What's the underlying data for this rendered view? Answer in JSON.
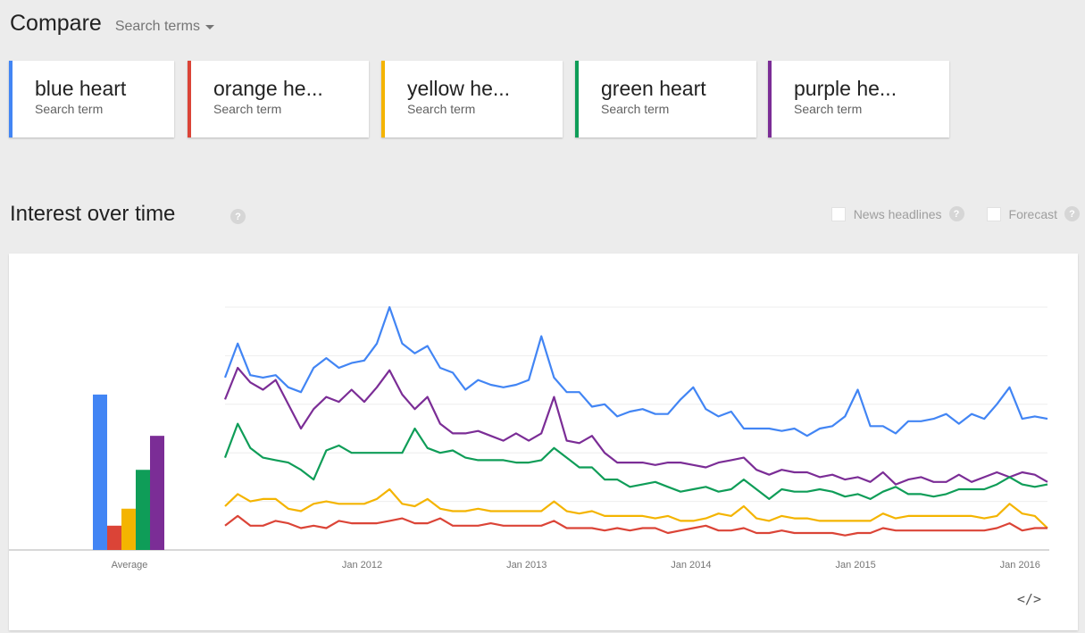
{
  "header": {
    "title": "Compare",
    "dropdown_label": "Search terms"
  },
  "terms": [
    {
      "name": "blue heart",
      "type": "Search term",
      "color": "#4285f4"
    },
    {
      "name": "orange he...",
      "type": "Search term",
      "color": "#db4437"
    },
    {
      "name": "yellow he...",
      "type": "Search term",
      "color": "#f4b400"
    },
    {
      "name": "green heart",
      "type": "Search term",
      "color": "#0f9d58"
    },
    {
      "name": "purple he...",
      "type": "Search term",
      "color": "#7b2d96"
    }
  ],
  "section": {
    "title": "Interest over time",
    "help": "?"
  },
  "options": [
    {
      "label": "News headlines",
      "help": "?"
    },
    {
      "label": "Forecast",
      "help": "?"
    }
  ],
  "chart_data": {
    "type": "line",
    "average_label": "Average",
    "x_ticks": [
      "Jan 2012",
      "Jan 2013",
      "Jan 2014",
      "Jan 2015",
      "Jan 2016"
    ],
    "x_start": "2011-03",
    "x_end": "2016-03",
    "ylim": [
      0,
      100
    ],
    "grid": true,
    "averages": [
      64,
      10,
      17,
      33,
      47
    ],
    "series": [
      {
        "name": "blue heart",
        "color": "#4285f4",
        "values": [
          71,
          85,
          72,
          71,
          72,
          67,
          65,
          75,
          79,
          75,
          77,
          78,
          85,
          100,
          85,
          81,
          84,
          75,
          73,
          66,
          70,
          68,
          67,
          68,
          70,
          88,
          71,
          65,
          65,
          59,
          60,
          55,
          57,
          58,
          56,
          56,
          62,
          67,
          58,
          55,
          57,
          50,
          50,
          50,
          49,
          50,
          47,
          50,
          51,
          55,
          66,
          51,
          51,
          48,
          53,
          53,
          54,
          56,
          52,
          56,
          54,
          60,
          67,
          54,
          55,
          54
        ]
      },
      {
        "name": "purple heart",
        "color": "#7b2d96",
        "values": [
          62,
          75,
          69,
          66,
          70,
          60,
          50,
          58,
          63,
          61,
          66,
          61,
          67,
          74,
          64,
          58,
          63,
          52,
          48,
          48,
          49,
          47,
          45,
          48,
          45,
          48,
          63,
          45,
          44,
          47,
          40,
          36,
          36,
          36,
          35,
          36,
          36,
          35,
          34,
          36,
          37,
          38,
          33,
          31,
          33,
          32,
          32,
          30,
          31,
          29,
          30,
          28,
          32,
          27,
          29,
          30,
          28,
          28,
          31,
          28,
          30,
          32,
          30,
          32,
          31,
          28
        ]
      },
      {
        "name": "green heart",
        "color": "#0f9d58",
        "values": [
          38,
          52,
          42,
          38,
          37,
          36,
          33,
          29,
          41,
          43,
          40,
          40,
          40,
          40,
          40,
          50,
          42,
          40,
          41,
          38,
          37,
          37,
          37,
          36,
          36,
          37,
          42,
          38,
          34,
          34,
          29,
          29,
          26,
          27,
          28,
          26,
          24,
          25,
          26,
          24,
          25,
          29,
          25,
          21,
          25,
          24,
          24,
          25,
          24,
          22,
          23,
          21,
          24,
          26,
          23,
          23,
          22,
          23,
          25,
          25,
          25,
          27,
          30,
          27,
          26,
          27
        ]
      },
      {
        "name": "yellow heart",
        "color": "#f4b400",
        "values": [
          18,
          23,
          20,
          21,
          21,
          17,
          16,
          19,
          20,
          19,
          19,
          19,
          21,
          25,
          19,
          18,
          21,
          17,
          16,
          16,
          17,
          16,
          16,
          16,
          16,
          16,
          20,
          16,
          15,
          16,
          14,
          14,
          14,
          14,
          13,
          14,
          12,
          12,
          13,
          15,
          14,
          18,
          13,
          12,
          14,
          13,
          13,
          12,
          12,
          12,
          12,
          12,
          15,
          13,
          14,
          14,
          14,
          14,
          14,
          14,
          13,
          14,
          19,
          15,
          14,
          9
        ]
      },
      {
        "name": "orange heart",
        "color": "#db4437",
        "values": [
          10,
          14,
          10,
          10,
          12,
          11,
          9,
          10,
          9,
          12,
          11,
          11,
          11,
          12,
          13,
          11,
          11,
          13,
          10,
          10,
          10,
          11,
          10,
          10,
          10,
          10,
          12,
          9,
          9,
          9,
          8,
          9,
          8,
          9,
          9,
          7,
          8,
          9,
          10,
          8,
          8,
          9,
          7,
          7,
          8,
          7,
          7,
          7,
          7,
          6,
          7,
          7,
          9,
          8,
          8,
          8,
          8,
          8,
          8,
          8,
          8,
          9,
          11,
          8,
          9,
          9
        ]
      }
    ]
  }
}
